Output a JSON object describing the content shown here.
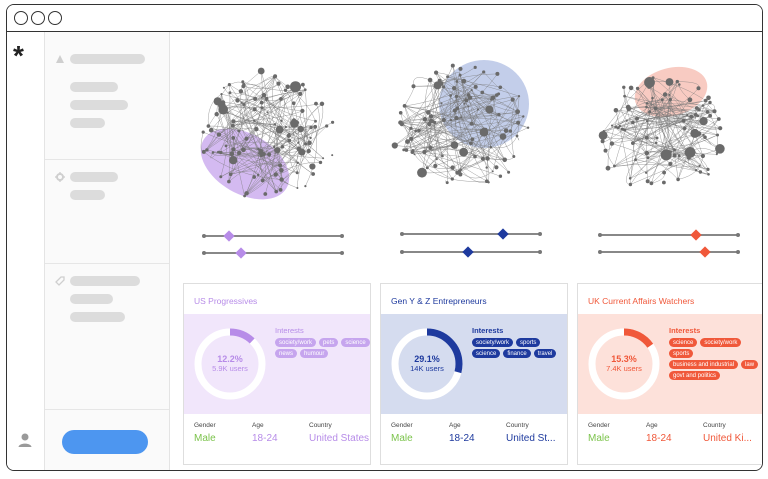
{
  "window": {
    "controls": [
      "close",
      "minimize",
      "maximize"
    ]
  },
  "rail": {
    "logo": "*",
    "profile_icon": "user-icon"
  },
  "sidebar": {
    "section_icons": [
      "triangle-icon",
      "gear-icon",
      "tag-icon"
    ]
  },
  "colors": {
    "purple": "#b78ce8",
    "navy": "#1e3a9e",
    "orange": "#f0583a",
    "green": "#7bc34b",
    "cta": "#4d96f0"
  },
  "segments": [
    {
      "title": "US Progressives",
      "share": "12.2%",
      "users": "5.9K users",
      "interests_label": "Interests",
      "interests": [
        "society/work",
        "pets",
        "science",
        "news",
        "humour"
      ],
      "gender_label": "Gender",
      "gender": "Male",
      "age_label": "Age",
      "age": "18-24",
      "country_label": "Country",
      "country": "United States"
    },
    {
      "title": "Gen Y & Z Entrepreneurs",
      "share": "29.1%",
      "users": "14K users",
      "interests_label": "Interests",
      "interests": [
        "society/work",
        "sports",
        "science",
        "finance",
        "travel"
      ],
      "gender_label": "Gender",
      "gender": "Male",
      "age_label": "Age",
      "age": "18-24",
      "country_label": "Country",
      "country": "United St..."
    },
    {
      "title": "UK Current Affairs Watchers",
      "share": "15.3%",
      "users": "7.4K users",
      "interests_label": "Interests",
      "interests": [
        "science",
        "society/work",
        "sports",
        "business and industrial",
        "law",
        "govt and politics"
      ],
      "gender_label": "Gender",
      "gender": "Male",
      "age_label": "Age",
      "age": "18-24",
      "country_label": "Country",
      "country": "United Ki..."
    }
  ]
}
